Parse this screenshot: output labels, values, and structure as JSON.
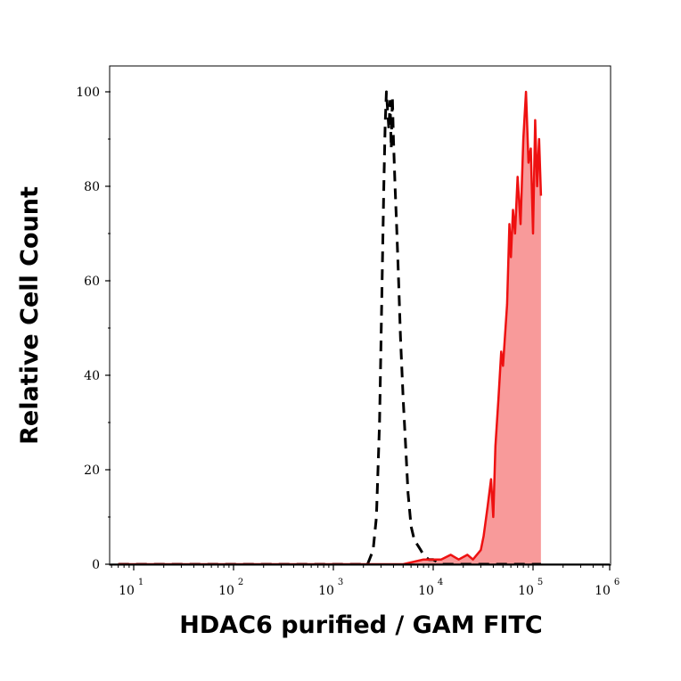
{
  "chart_data": {
    "type": "area",
    "xlabel": "HDAC6 purified / GAM FITC",
    "ylabel": "Relative Cell Count",
    "x_scale": "log",
    "xlim": [
      7,
      120000
    ],
    "ylim": [
      0,
      105
    ],
    "x_ticks": [
      {
        "value": 10,
        "base": "10",
        "exp": "1"
      },
      {
        "value": 100,
        "base": "10",
        "exp": "2"
      },
      {
        "value": 1000,
        "base": "10",
        "exp": "3"
      },
      {
        "value": 10000,
        "base": "10",
        "exp": "4"
      },
      {
        "value": 100000,
        "base": "10",
        "exp": "5"
      },
      {
        "value": 1000000,
        "base": "10",
        "exp": "6"
      }
    ],
    "y_ticks": [
      0,
      20,
      40,
      60,
      80,
      100
    ],
    "grid": false,
    "series": [
      {
        "style": "dashed",
        "color": "#000000",
        "fill": "none",
        "x": [
          7,
          1000,
          2200,
          2500,
          2700,
          2900,
          3050,
          3200,
          3300,
          3400,
          3500,
          3600,
          3700,
          3800,
          3900,
          4000,
          4150,
          4300,
          4500,
          4700,
          5000,
          5300,
          5600,
          6000,
          6500,
          7000,
          7500,
          8000,
          9000,
          10000,
          12000,
          15000,
          20000,
          30000,
          40000,
          60000,
          80000,
          100000,
          120000
        ],
        "y": [
          0,
          0,
          0,
          3,
          10,
          30,
          55,
          80,
          93,
          100,
          96,
          92,
          98,
          88,
          99,
          90,
          80,
          72,
          60,
          48,
          35,
          25,
          15,
          8,
          5,
          4,
          3,
          2,
          1,
          1,
          0,
          0,
          0,
          0,
          0,
          0,
          0,
          0,
          0
        ]
      },
      {
        "style": "solid",
        "color": "#ee1111",
        "fill": "#f89a9a",
        "x": [
          7,
          5000,
          8000,
          12000,
          15000,
          18000,
          22000,
          25000,
          30000,
          32000,
          35000,
          38000,
          40000,
          42000,
          45000,
          48000,
          50000,
          55000,
          58000,
          60000,
          63000,
          66000,
          70000,
          75000,
          80000,
          85000,
          90000,
          95000,
          100000,
          105000,
          110000,
          115000,
          120000
        ],
        "y": [
          0,
          0,
          1,
          1,
          2,
          1,
          2,
          1,
          3,
          6,
          12,
          18,
          10,
          25,
          35,
          45,
          42,
          55,
          72,
          65,
          75,
          70,
          82,
          72,
          90,
          100,
          85,
          88,
          70,
          94,
          80,
          90,
          78
        ]
      }
    ]
  }
}
